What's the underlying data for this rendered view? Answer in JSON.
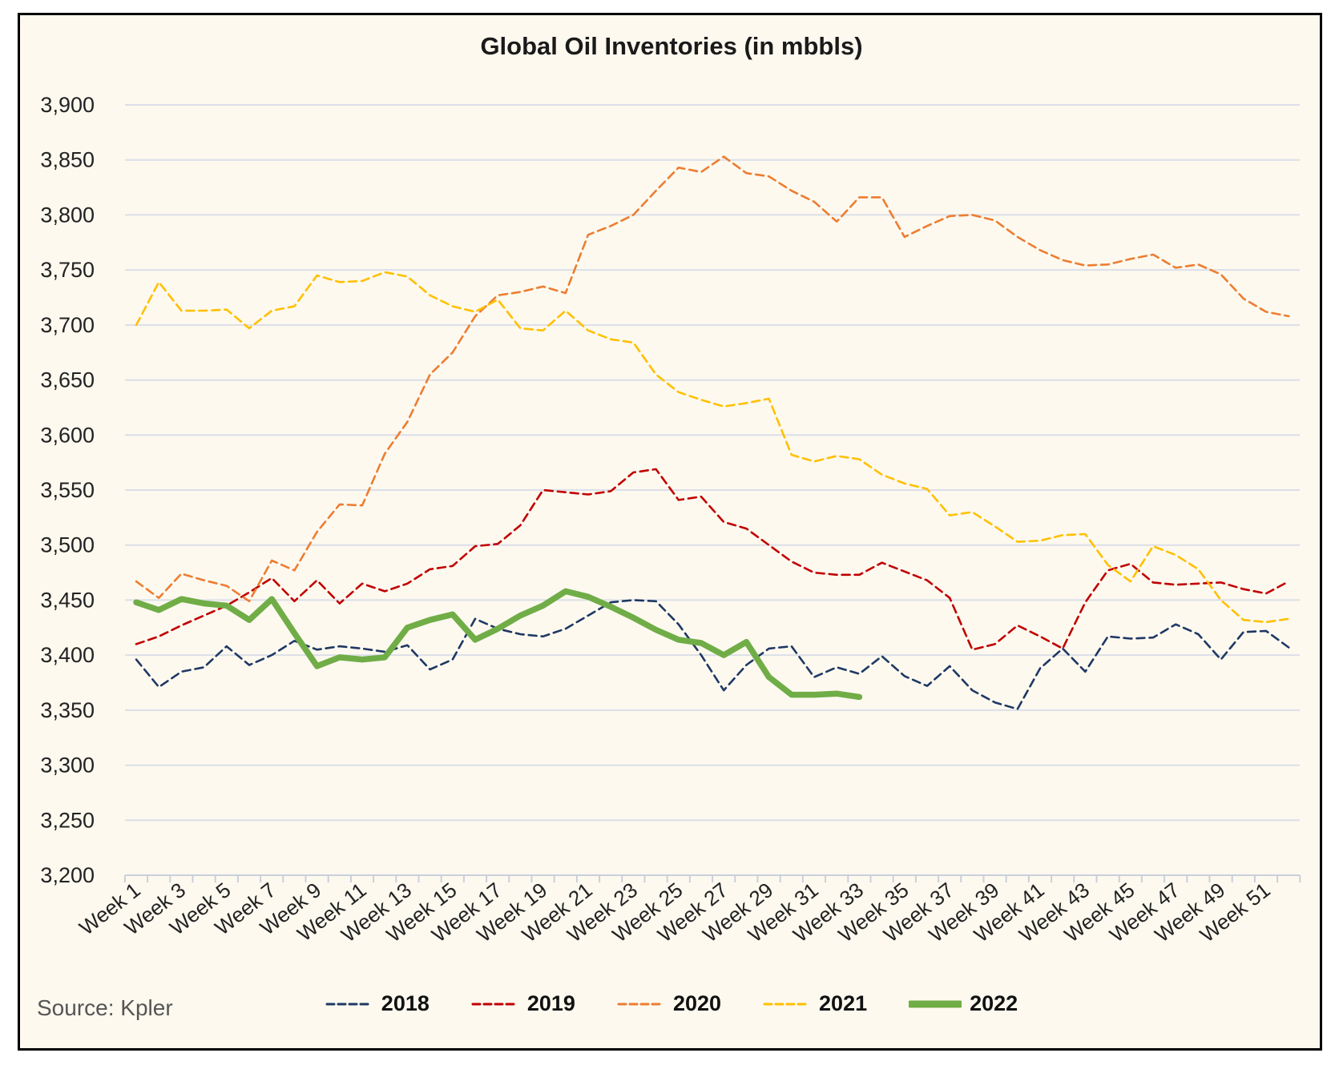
{
  "page": {
    "title": "Global Oil Inventories (in mbbls)",
    "source": "Source: Kpler"
  },
  "chart_data": {
    "type": "line",
    "title": "Global Oil Inventories (in mbbls)",
    "xlabel": "",
    "ylabel": "",
    "ylim": [
      3200,
      3900
    ],
    "ytick_step": 50,
    "y_tick_labels": [
      "3,200",
      "3,250",
      "3,300",
      "3,350",
      "3,400",
      "3,450",
      "3,500",
      "3,550",
      "3,600",
      "3,650",
      "3,700",
      "3,750",
      "3,800",
      "3,850",
      "3,900"
    ],
    "x_count": 52,
    "x_tick_labels": [
      "Week 1",
      "Week 3",
      "Week 5",
      "Week 7",
      "Week 9",
      "Week 11",
      "Week 13",
      "Week 15",
      "Week 17",
      "Week 19",
      "Week 21",
      "Week 23",
      "Week 25",
      "Week 27",
      "Week 29",
      "Week 31",
      "Week 33",
      "Week 35",
      "Week 37",
      "Week 39",
      "Week 41",
      "Week 43",
      "Week 45",
      "Week 47",
      "Week 49",
      "Week 51"
    ],
    "grid": true,
    "legend_position": "bottom",
    "colors": {
      "background": "#FDF9EF",
      "gridline": "#DBDFE8",
      "axis": "#C9CFDA",
      "text": "#222222",
      "source_text": "#555555"
    },
    "series": [
      {
        "name": "2018",
        "color": "#1F3864",
        "style": "dashed",
        "values": [
          3396,
          3371,
          3385,
          3389,
          3408,
          3391,
          3400,
          3413,
          3405,
          3408,
          3406,
          3403,
          3409,
          3387,
          3396,
          3433,
          3424,
          3419,
          3417,
          3424,
          3436,
          3448,
          3450,
          3449,
          3428,
          3400,
          3368,
          3391,
          3406,
          3408,
          3380,
          3389,
          3383,
          3399,
          3381,
          3372,
          3390,
          3368,
          3357,
          3351,
          3388,
          3406,
          3385,
          3417,
          3415,
          3416,
          3428,
          3419,
          3396,
          3421,
          3422,
          3407
        ]
      },
      {
        "name": "2019",
        "color": "#C00000",
        "style": "dashed",
        "values": [
          3410,
          3417,
          3427,
          3436,
          3445,
          3457,
          3470,
          3449,
          3468,
          3447,
          3465,
          3458,
          3465,
          3478,
          3481,
          3499,
          3501,
          3518,
          3550,
          3548,
          3546,
          3549,
          3566,
          3569,
          3541,
          3544,
          3521,
          3515,
          3500,
          3485,
          3475,
          3473,
          3473,
          3484,
          3476,
          3468,
          3452,
          3405,
          3410,
          3427,
          3417,
          3406,
          3448,
          3477,
          3483,
          3466,
          3464,
          3465,
          3466,
          3460,
          3456,
          3467
        ]
      },
      {
        "name": "2020",
        "color": "#ED7D31",
        "style": "dashed",
        "values": [
          3467,
          3452,
          3474,
          3468,
          3463,
          3449,
          3486,
          3477,
          3512,
          3537,
          3536,
          3583,
          3612,
          3655,
          3675,
          3708,
          3727,
          3730,
          3735,
          3729,
          3782,
          3790,
          3800,
          3822,
          3843,
          3839,
          3853,
          3838,
          3835,
          3822,
          3812,
          3794,
          3816,
          3816,
          3780,
          3790,
          3799,
          3800,
          3795,
          3780,
          3768,
          3759,
          3754,
          3755,
          3760,
          3764,
          3752,
          3755,
          3746,
          3724,
          3712,
          3708
        ]
      },
      {
        "name": "2021",
        "color": "#FFC000",
        "style": "dashed",
        "values": [
          3700,
          3739,
          3713,
          3713,
          3714,
          3697,
          3713,
          3717,
          3745,
          3739,
          3740,
          3748,
          3744,
          3727,
          3717,
          3712,
          3723,
          3697,
          3695,
          3713,
          3695,
          3687,
          3684,
          3655,
          3639,
          3632,
          3626,
          3629,
          3633,
          3582,
          3576,
          3581,
          3578,
          3564,
          3556,
          3551,
          3527,
          3530,
          3517,
          3503,
          3504,
          3509,
          3510,
          3482,
          3467,
          3499,
          3491,
          3478,
          3450,
          3432,
          3430,
          3433
        ]
      },
      {
        "name": "2022",
        "color": "#70AD47",
        "style": "solid",
        "values": [
          3448,
          3441,
          3451,
          3447,
          3445,
          3432,
          3451,
          3420,
          3390,
          3398,
          3396,
          3398,
          3425,
          3432,
          3437,
          3414,
          3424,
          3436,
          3445,
          3458,
          3453,
          3444,
          3434,
          3423,
          3414,
          3411,
          3400,
          3412,
          3380,
          3364,
          3364,
          3365,
          3362
        ]
      }
    ]
  }
}
